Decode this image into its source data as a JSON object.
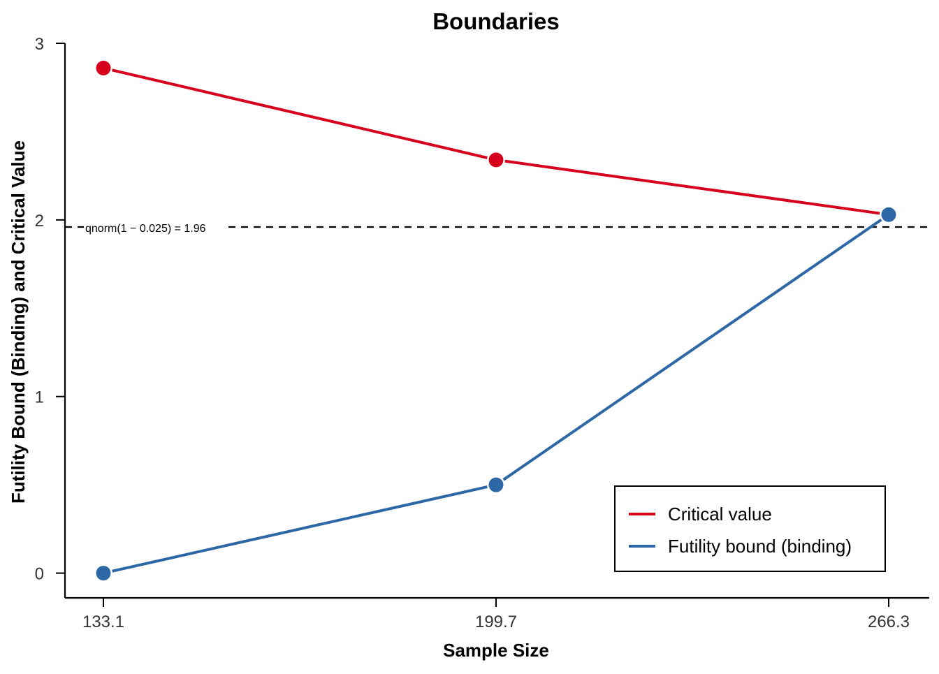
{
  "chart_data": {
    "type": "line",
    "title": "Boundaries",
    "xlabel": "Sample Size",
    "ylabel": "Futility Bound (Binding) and Critical Value",
    "x": [
      133.1,
      199.7,
      266.3
    ],
    "x_tick_labels": [
      "133.1",
      "199.7",
      "266.3"
    ],
    "y_ticks": [
      0,
      1,
      2,
      3
    ],
    "y_tick_labels": [
      "0",
      "1",
      "2",
      "3"
    ],
    "ylim": [
      -0.14,
      3.0
    ],
    "series": [
      {
        "name": "Critical value",
        "color": "#d7001c",
        "values": [
          2.86,
          2.34,
          2.03
        ]
      },
      {
        "name": "Futility bound (binding)",
        "color": "#2e67a6",
        "values": [
          0.0,
          0.5,
          2.03
        ]
      }
    ],
    "reference_line": {
      "y": 1.96,
      "style": "dashed",
      "color": "#000000",
      "label": "qnorm(1 − 0.025) = 1.96"
    },
    "legend_position": "bottom-right",
    "grid": false
  }
}
